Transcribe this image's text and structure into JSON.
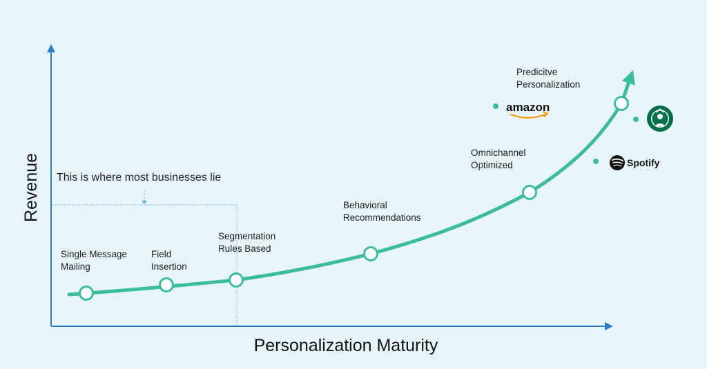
{
  "axes": {
    "x_title": "Personalization Maturity",
    "y_title": "Revenue"
  },
  "callout": {
    "text": "This is where most businesses lie"
  },
  "stages": [
    {
      "line1": "Single Message",
      "line2": "Mailing"
    },
    {
      "line1": "Field",
      "line2": "Insertion"
    },
    {
      "line1": "Segmentation",
      "line2": "Rules Based"
    },
    {
      "line1": "Behavioral",
      "line2": "Recommendations"
    },
    {
      "line1": "Omnichannel",
      "line2": "Optimized"
    },
    {
      "line1": "Predicitve",
      "line2": "Personalization"
    }
  ],
  "brands": {
    "amazon": "amazon",
    "spotify": "Spotify",
    "starbucks": "STARBUCKS COFFEE"
  },
  "colors": {
    "background": "#e8f4fb",
    "curve": "#3bbd9c",
    "axis": "#2f7fc6",
    "guide": "#6aaee0"
  },
  "icons": [
    "amazon-logo-icon",
    "starbucks-logo-icon",
    "spotify-logo-icon"
  ]
}
